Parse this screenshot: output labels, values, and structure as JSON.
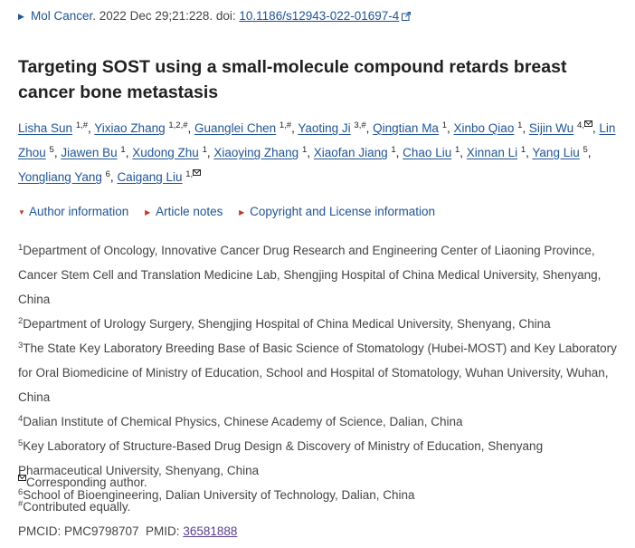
{
  "citation": {
    "journal": "Mol Cancer",
    "details": ". 2022 Dec 29;21:228. doi: ",
    "doi": "10.1186/s12943-022-01697-4"
  },
  "title": "Targeting SOST using a small-molecule compound retards breast cancer bone metastasis",
  "authors": [
    {
      "name": "Lisha Sun",
      "sup": "1,#"
    },
    {
      "name": "Yixiao Zhang",
      "sup": "1,2,#"
    },
    {
      "name": "Guanglei Chen",
      "sup": "1,#"
    },
    {
      "name": "Yaoting Ji",
      "sup": "3,#"
    },
    {
      "name": "Qingtian Ma",
      "sup": "1"
    },
    {
      "name": "Xinbo Qiao",
      "sup": "1"
    },
    {
      "name": "Sijin Wu",
      "sup": "4,"
    },
    {
      "name": "Lin Zhou",
      "sup": "5"
    },
    {
      "name": "Jiawen Bu",
      "sup": "1"
    },
    {
      "name": "Xudong Zhu",
      "sup": "1"
    },
    {
      "name": "Xiaoying Zhang",
      "sup": "1"
    },
    {
      "name": "Xiaofan Jiang",
      "sup": "1"
    },
    {
      "name": "Chao Liu",
      "sup": "1"
    },
    {
      "name": "Xinnan Li",
      "sup": "1"
    },
    {
      "name": "Yang Liu",
      "sup": "5"
    },
    {
      "name": "Yongliang Yang",
      "sup": "6"
    },
    {
      "name": "Caigang Liu",
      "sup": "1,"
    }
  ],
  "toggles": {
    "author_info": "Author information",
    "article_notes": "Article notes",
    "copyright": "Copyright and License information"
  },
  "affiliations": [
    {
      "num": "1",
      "text": "Department of Oncology, Innovative Cancer Drug Research and Engineering Center of Liaoning Province, Cancer Stem Cell and Translation Medicine Lab, Shengjing Hospital of China Medical University, Shenyang, China"
    },
    {
      "num": "2",
      "text": "Department of Urology Surgery, Shengjing Hospital of China Medical University, Shenyang, China"
    },
    {
      "num": "3",
      "text": "The State Key Laboratory Breeding Base of Basic Science of Stomatology (Hubei-MOST) and Key Laboratory for Oral Biomedicine of Ministry of Education, School and Hospital of Stomatology, Wuhan University, Wuhan, China"
    },
    {
      "num": "4",
      "text": "Dalian Institute of Chemical Physics, Chinese Academy of Science, Dalian, China"
    },
    {
      "num": "5",
      "text": "Key Laboratory of Structure-Based Drug Design & Discovery of Ministry of Education, Shenyang Pharmaceutical University, Shenyang, China"
    },
    {
      "num": "6",
      "text": "School of Bioengineering, Dalian University of Technology, Dalian, China"
    }
  ],
  "notes": {
    "corresponding": "Corresponding author.",
    "contributed_sup": "#",
    "contributed": "Contributed equally.",
    "pmcid_label": "PMCID: PMC9798707  PMID: ",
    "pmid": "36581888"
  },
  "colors": {
    "link": "#205493",
    "visited": "#5a3e8c",
    "toggle_arrow": "#c0392b"
  }
}
